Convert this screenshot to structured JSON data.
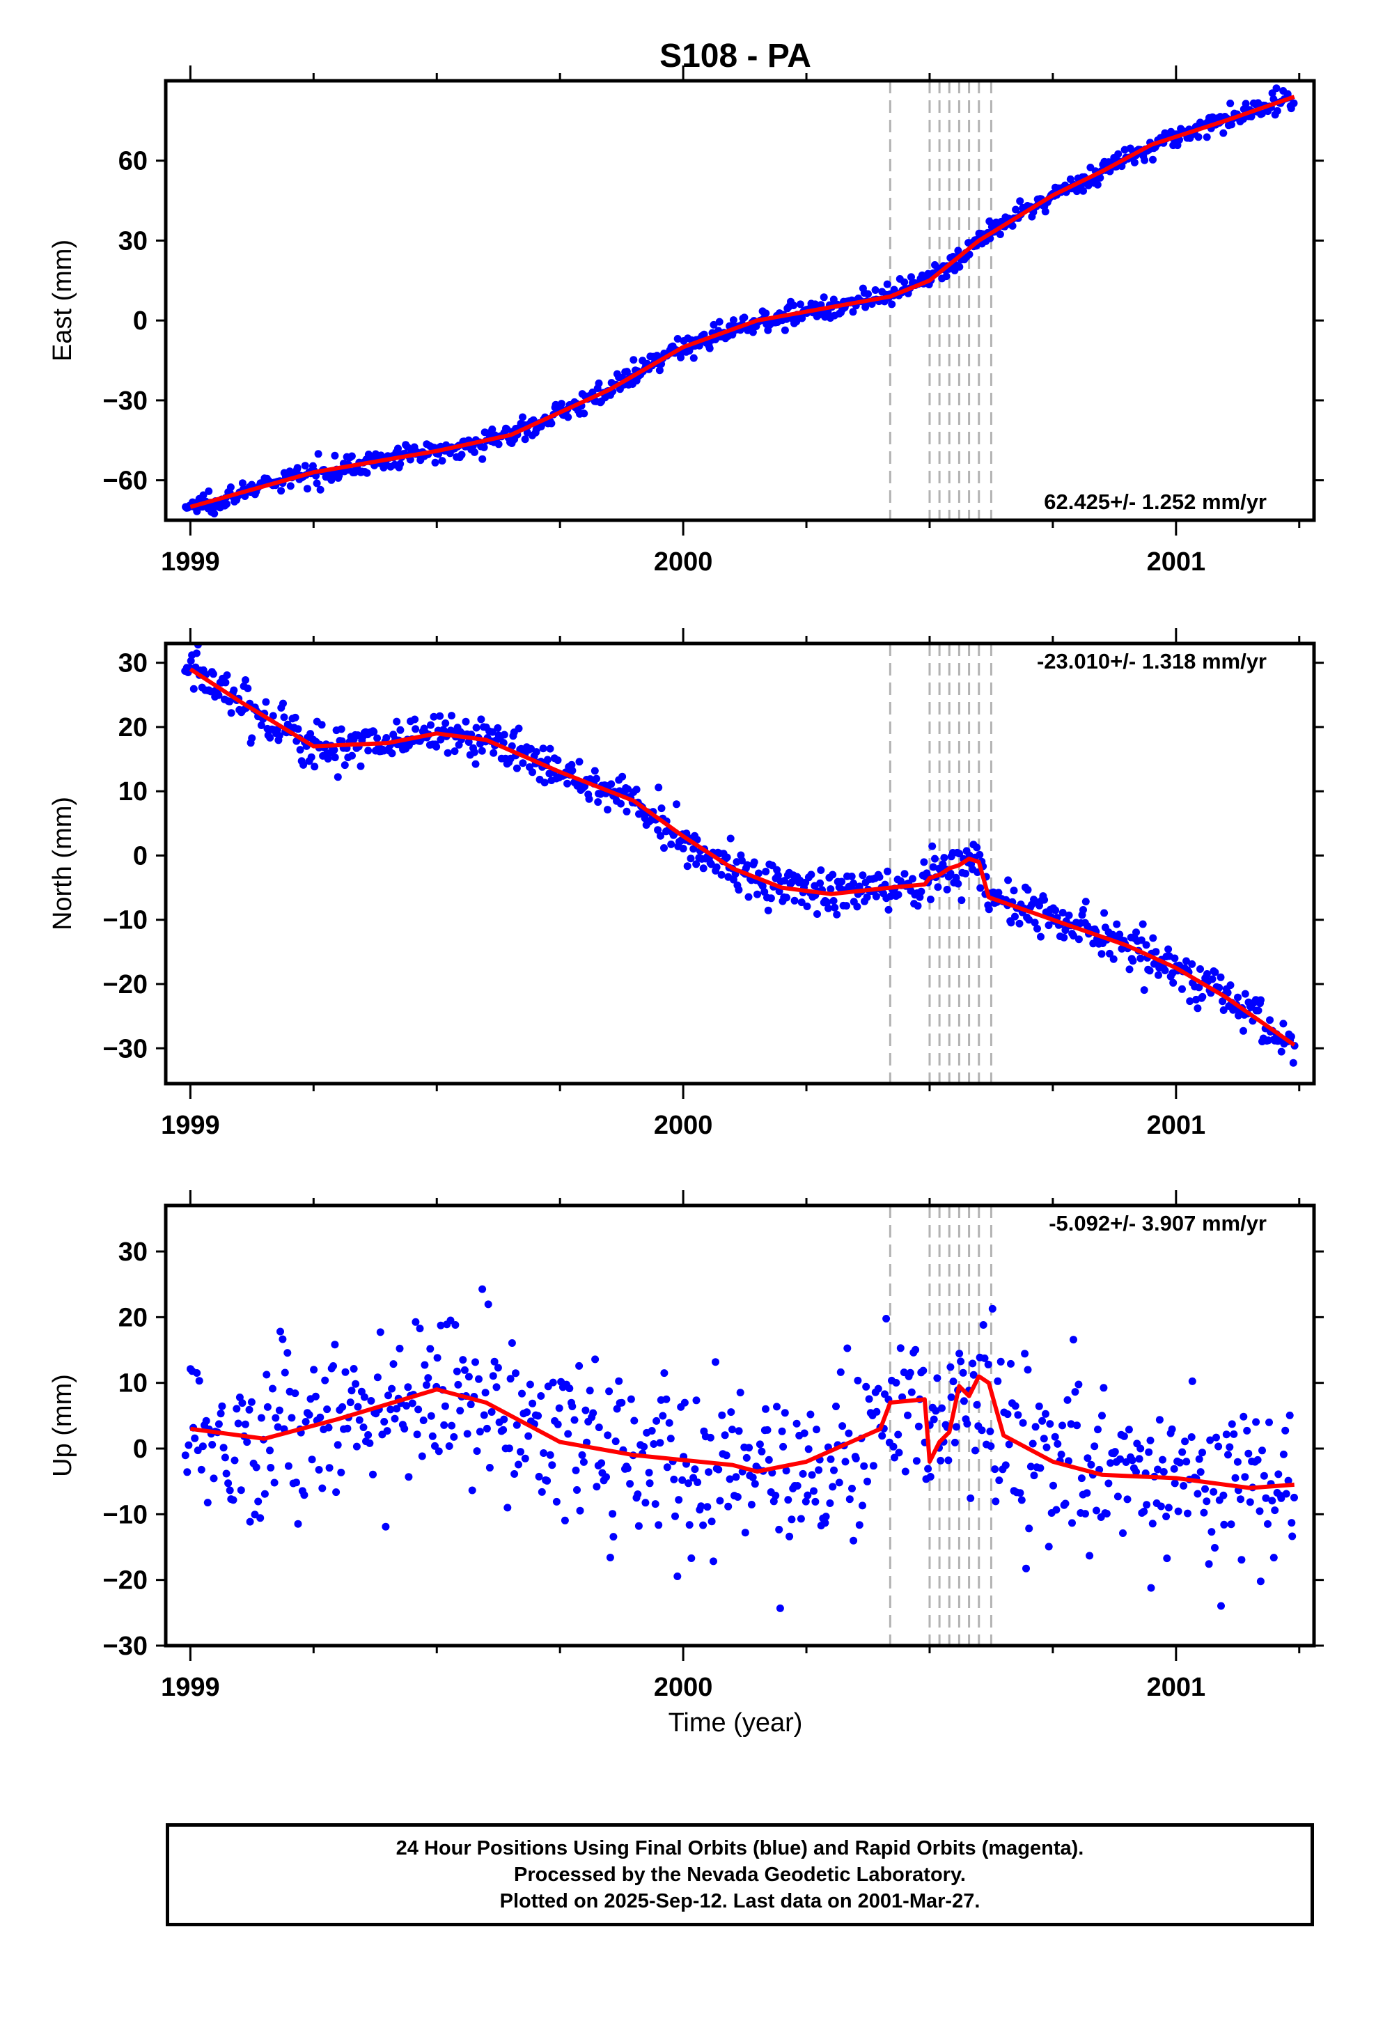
{
  "title": "S108 - PA",
  "xlabel": "Time (year)",
  "footer": {
    "line1": "24 Hour Positions Using Final Orbits (blue) and Rapid Orbits (magenta).",
    "line2": "Processed by the Nevada Geodetic Laboratory.",
    "line3": "Plotted on 2025-Sep-12. Last data on 2001-Mar-27."
  },
  "colors": {
    "points": "#0000ff",
    "model": "#ff0000",
    "breaks": "#b3b3b3",
    "axis": "#000000"
  },
  "chart_data": [
    {
      "type": "scatter",
      "component": "east",
      "ylabel": "East (mm)",
      "rate_label": "62.425+/- 1.252 mm/yr",
      "rate_position": "bottom-right",
      "xlim": [
        1998.95,
        2001.28
      ],
      "ylim": [
        -75,
        90
      ],
      "yticks": [
        -60,
        -30,
        0,
        30,
        60
      ],
      "xticks": [
        1999,
        2000,
        2001
      ],
      "x_minor_ticks": [
        1999.25,
        1999.5,
        1999.75,
        2000.25,
        2000.5,
        2000.75,
        2001.25
      ],
      "x_tick_labels": [
        "1999",
        "2000",
        "2001"
      ],
      "y_tick_labels": [
        "−60",
        "−30",
        "0",
        "30",
        "60"
      ],
      "model_knots": [
        [
          1999.0,
          -70
        ],
        [
          1999.25,
          -57
        ],
        [
          1999.5,
          -49
        ],
        [
          1999.65,
          -43
        ],
        [
          1999.85,
          -26
        ],
        [
          2000.0,
          -10
        ],
        [
          2000.15,
          0
        ],
        [
          2000.3,
          5
        ],
        [
          2000.42,
          9
        ],
        [
          2000.5,
          15
        ],
        [
          2000.6,
          30
        ],
        [
          2000.75,
          47
        ],
        [
          2000.85,
          56
        ],
        [
          2000.95,
          66
        ],
        [
          2001.1,
          75
        ],
        [
          2001.24,
          84
        ]
      ],
      "scatter_sigma": 2.0,
      "n_points": 800
    },
    {
      "type": "scatter",
      "component": "north",
      "ylabel": "North (mm)",
      "rate_label": "-23.010+/- 1.318 mm/yr",
      "rate_position": "top-right",
      "xlim": [
        1998.95,
        2001.28
      ],
      "ylim": [
        -35.5,
        33
      ],
      "yticks": [
        -30,
        -20,
        -10,
        0,
        10,
        20,
        30
      ],
      "xticks": [
        1999,
        2000,
        2001
      ],
      "x_minor_ticks": [
        1999.25,
        1999.5,
        1999.75,
        2000.25,
        2000.5,
        2000.75,
        2001.25
      ],
      "x_tick_labels": [
        "1999",
        "2000",
        "2001"
      ],
      "y_tick_labels": [
        "−30",
        "−20",
        "−10",
        "0",
        "10",
        "20",
        "30"
      ],
      "model_knots": [
        [
          1999.0,
          29
        ],
        [
          1999.1,
          24
        ],
        [
          1999.25,
          17
        ],
        [
          1999.4,
          17.5
        ],
        [
          1999.5,
          19
        ],
        [
          1999.6,
          18
        ],
        [
          1999.75,
          13
        ],
        [
          1999.9,
          8.5
        ],
        [
          2000.0,
          3
        ],
        [
          2000.1,
          -2
        ],
        [
          2000.2,
          -5
        ],
        [
          2000.3,
          -6
        ],
        [
          2000.42,
          -5
        ],
        [
          2000.49,
          -4.5
        ],
        [
          2000.5,
          -3.5
        ],
        [
          2000.52,
          -3
        ],
        [
          2000.54,
          -2
        ],
        [
          2000.56,
          -1.5
        ],
        [
          2000.58,
          -0.5
        ],
        [
          2000.6,
          -1
        ],
        [
          2000.62,
          -6.5
        ],
        [
          2000.75,
          -10
        ],
        [
          2000.9,
          -14
        ],
        [
          2001.0,
          -17.5
        ],
        [
          2001.1,
          -22
        ],
        [
          2001.24,
          -29.5
        ]
      ],
      "scatter_sigma": 1.8,
      "n_points": 800
    },
    {
      "type": "scatter",
      "component": "up",
      "ylabel": "Up (mm)",
      "rate_label": "-5.092+/- 3.907 mm/yr",
      "rate_position": "top-right",
      "xlim": [
        1998.95,
        2001.28
      ],
      "ylim": [
        -30,
        37
      ],
      "yticks": [
        -30,
        -20,
        -10,
        0,
        10,
        20,
        30
      ],
      "xticks": [
        1999,
        2000,
        2001
      ],
      "x_minor_ticks": [
        1999.25,
        1999.5,
        1999.75,
        2000.25,
        2000.5,
        2000.75,
        2001.25
      ],
      "x_tick_labels": [
        "1999",
        "2000",
        "2001"
      ],
      "y_tick_labels": [
        "−30",
        "−20",
        "−10",
        "0",
        "10",
        "20",
        "30"
      ],
      "model_knots": [
        [
          1999.0,
          3
        ],
        [
          1999.15,
          1.5
        ],
        [
          1999.3,
          4.5
        ],
        [
          1999.5,
          9
        ],
        [
          1999.6,
          7
        ],
        [
          1999.75,
          1
        ],
        [
          1999.9,
          -1
        ],
        [
          2000.1,
          -2.5
        ],
        [
          2000.15,
          -3.5
        ],
        [
          2000.25,
          -2
        ],
        [
          2000.4,
          3
        ],
        [
          2000.42,
          7
        ],
        [
          2000.49,
          7.5
        ],
        [
          2000.5,
          -2
        ],
        [
          2000.52,
          1
        ],
        [
          2000.54,
          2.5
        ],
        [
          2000.56,
          9.5
        ],
        [
          2000.58,
          8
        ],
        [
          2000.6,
          11
        ],
        [
          2000.62,
          10
        ],
        [
          2000.65,
          2
        ],
        [
          2000.75,
          -2
        ],
        [
          2000.85,
          -4
        ],
        [
          2001.0,
          -4.5
        ],
        [
          2001.15,
          -6
        ],
        [
          2001.24,
          -5.5
        ]
      ],
      "scatter_sigma": 6.5,
      "n_points": 700
    }
  ],
  "break_epochs": [
    2000.42,
    2000.5,
    2000.52,
    2000.54,
    2000.56,
    2000.58,
    2000.6,
    2000.625
  ]
}
